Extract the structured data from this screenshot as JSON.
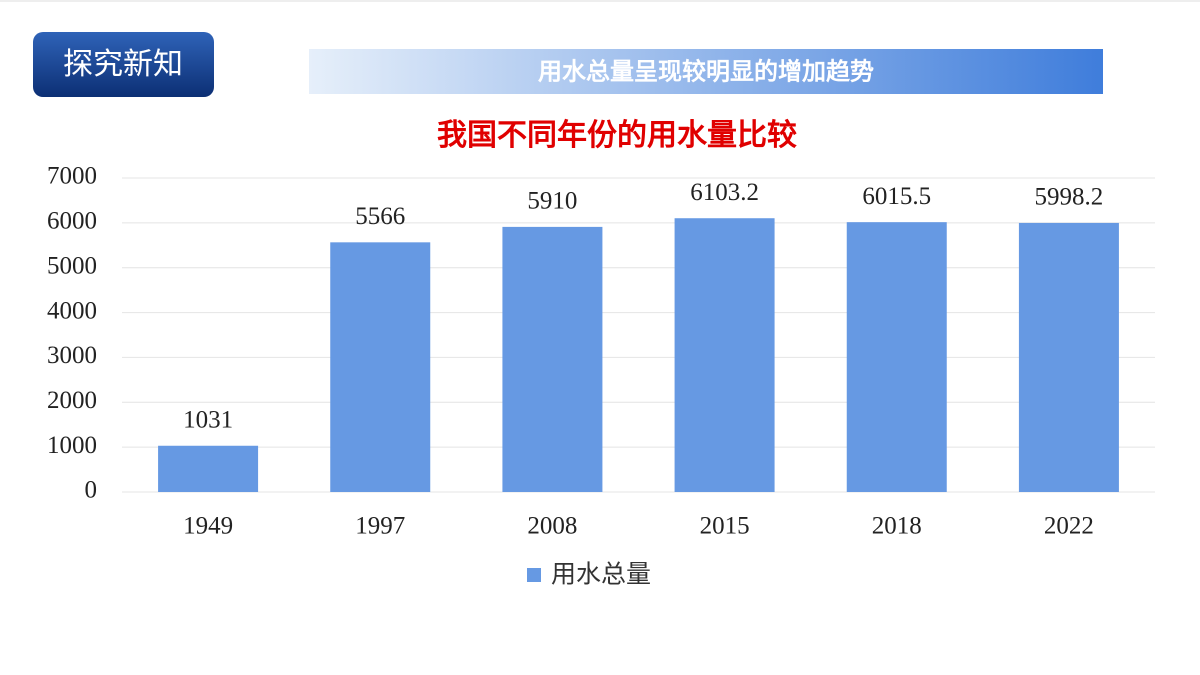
{
  "badge": "探究新知",
  "banner": "用水总量呈现较明显的增加趋势",
  "chart_data": {
    "type": "bar",
    "title": "我国不同年份的用水量比较",
    "categories": [
      "1949",
      "1997",
      "2008",
      "2015",
      "2018",
      "2022"
    ],
    "series": [
      {
        "name": "用水总量",
        "color": "#6699e3",
        "values": [
          1031,
          5566,
          5910,
          6103.2,
          6015.5,
          5998.2
        ]
      }
    ],
    "ylim": [
      0,
      7000
    ],
    "yticks": [
      0,
      1000,
      2000,
      3000,
      4000,
      5000,
      6000,
      7000
    ],
    "grid": true,
    "legend": "bottom"
  }
}
